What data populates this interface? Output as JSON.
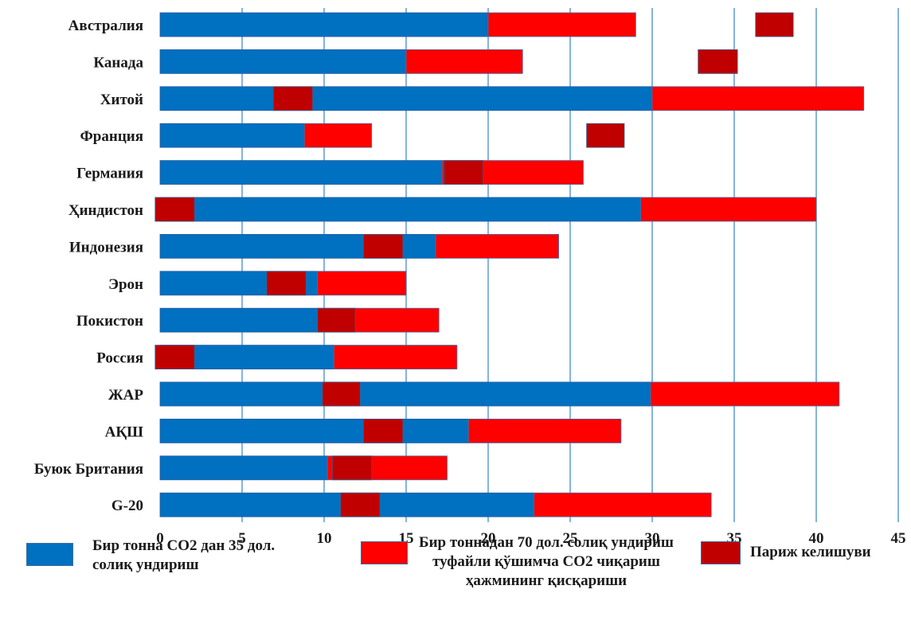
{
  "chart_data": {
    "type": "bar",
    "orientation": "horizontal",
    "stacked": true,
    "categories": [
      "Австралия",
      "Канада",
      "Хитой",
      "Франция",
      "Германия",
      "Ҳиндистон",
      "Индонезия",
      "Эрон",
      "Покистон",
      "Россия",
      "ЖАР",
      "АҚШ",
      "Буюк Британия",
      "G-20"
    ],
    "series": [
      {
        "name": "Бир тонна СО2 дан 35 дол. солиқ ундириш",
        "color": "#0070c0"
      },
      {
        "name": "Бир тоннадан 70 дол. солиқ ундириш туфайли қўшимча СО2 чиқариш ҳажмининг қисқариши",
        "color": "#ff0000"
      },
      {
        "name": "Париж келишуви",
        "color": "#c00000"
      }
    ],
    "tax35": [
      20,
      15,
      30,
      8.8,
      17.2,
      29.3,
      16.8,
      9.6,
      9.6,
      10.6,
      29.9,
      18.8,
      10.2,
      22.8
    ],
    "tax70": [
      29,
      22.1,
      42.9,
      12.9,
      25.8,
      40,
      24.3,
      15,
      17,
      18.1,
      41.4,
      28.1,
      17.5,
      33.6
    ],
    "paris": [
      [
        36.3,
        38.6
      ],
      [
        32.8,
        35.2
      ],
      [
        6.9,
        9.3
      ],
      [
        26,
        28.3
      ],
      [
        17.3,
        19.7
      ],
      [
        -0.3,
        2.1
      ],
      [
        12.4,
        14.8
      ],
      [
        6.5,
        8.9
      ],
      [
        9.6,
        11.9
      ],
      [
        -0.3,
        2.1
      ],
      [
        9.9,
        12.2
      ],
      [
        12.4,
        14.8
      ],
      [
        10.5,
        12.9
      ],
      [
        11,
        13.4
      ]
    ],
    "xlim": [
      0,
      45
    ],
    "xticks": [
      0,
      5,
      10,
      15,
      20,
      25,
      30,
      35,
      40,
      45
    ],
    "grid": "vertical",
    "legend_position": "bottom"
  }
}
